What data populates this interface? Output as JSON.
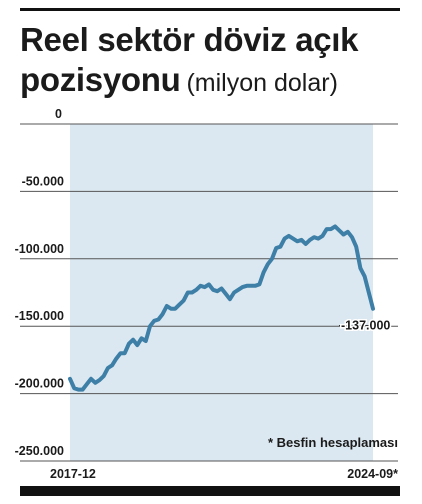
{
  "title_line1": "Reel sektör döviz açık",
  "title_line2": "pozisyonu",
  "title_unit": "(milyon dolar)",
  "note": "* Besfin hesaplaması",
  "colors": {
    "line": "#3d7fa6",
    "area": "#dce8f1",
    "grid": "#555555",
    "text": "#1b1b1b"
  },
  "chart_data": {
    "type": "line",
    "title": "Reel sektör döviz açık pozisyonu (milyon dolar)",
    "ylabel": "",
    "xlabel": "",
    "ylim": [
      -250000,
      0
    ],
    "yticks": [
      0,
      -50000,
      -100000,
      -150000,
      -200000,
      -250000
    ],
    "ytick_labels": [
      "0",
      "-50.000",
      "-100.000",
      "-150.000",
      "-200.000",
      "-250.000"
    ],
    "x_tick_labels": [
      "2017-12",
      "2024-09*"
    ],
    "x_start": "2017-12",
    "x_end": "2024-09",
    "last_value_label": "-137.000",
    "series": [
      {
        "values": [
          -189000,
          -196000,
          -197000,
          -197000,
          -193000,
          -189000,
          -192000,
          -190000,
          -187000,
          -181000,
          -179000,
          -174000,
          -170000,
          -170000,
          -163000,
          -160000,
          -164000,
          -159000,
          -161000,
          -150000,
          -146000,
          -145000,
          -141000,
          -135000,
          -137000,
          -137000,
          -134000,
          -131000,
          -125000,
          -125000,
          -123000,
          -120000,
          -121000,
          -119000,
          -123000,
          -124000,
          -122000,
          -126000,
          -130000,
          -125000,
          -123000,
          -121000,
          -120000,
          -120000,
          -120000,
          -119000,
          -110000,
          -104000,
          -100000,
          -92000,
          -91000,
          -85000,
          -83000,
          -85000,
          -87000,
          -86000,
          -89000,
          -86000,
          -84000,
          -85000,
          -83000,
          -78000,
          -78000,
          -76000,
          -79000,
          -82000,
          -80000,
          -84000,
          -91000,
          -107000,
          -113000,
          -125000,
          -137000
        ]
      }
    ]
  }
}
